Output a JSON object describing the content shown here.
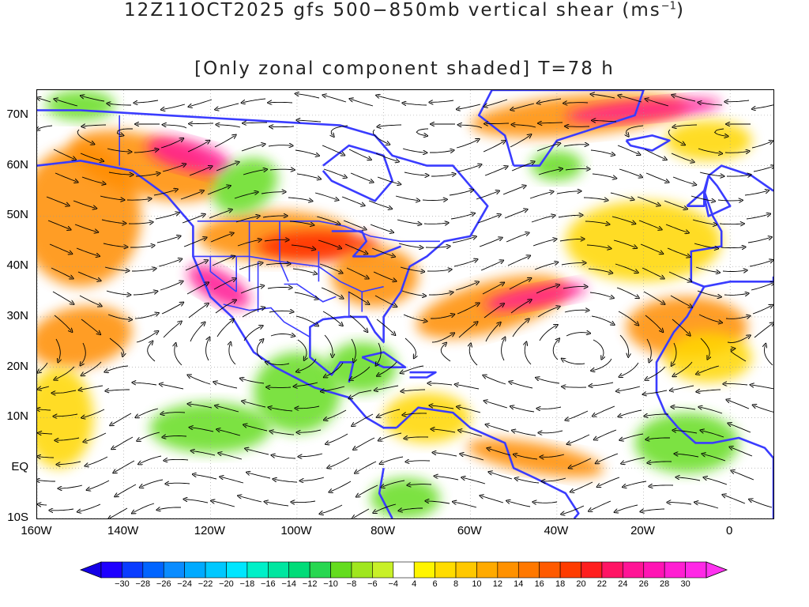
{
  "title": {
    "line1_prefix": "12Z11OCT2025 gfs 500−850mb vertical shear (ms",
    "line1_sup": "−1",
    "line1_suffix": ")",
    "line2": "[Only zonal component shaded] T=78 h"
  },
  "axes": {
    "lat_labels": [
      "70N",
      "60N",
      "50N",
      "40N",
      "30N",
      "20N",
      "10N",
      "EQ",
      "10S"
    ],
    "lat_values": [
      70,
      60,
      50,
      40,
      30,
      20,
      10,
      0,
      -10
    ],
    "lon_labels": [
      "160W",
      "140W",
      "120W",
      "100W",
      "80W",
      "60W",
      "40W",
      "20W",
      "0"
    ],
    "lon_values": [
      -160,
      -140,
      -120,
      -100,
      -80,
      -60,
      -40,
      -20,
      0
    ],
    "lon_range": [
      -160,
      10
    ],
    "lat_range": [
      -10,
      75
    ]
  },
  "colorbar": {
    "labels": [
      "−30",
      "−28",
      "−26",
      "−24",
      "−22",
      "−20",
      "−18",
      "−16",
      "−14",
      "−12",
      "−10",
      "−8",
      "−6",
      "−4",
      "4",
      "6",
      "8",
      "10",
      "12",
      "14",
      "16",
      "18",
      "20",
      "22",
      "24",
      "26",
      "28",
      "30"
    ],
    "colors": [
      "#1e00ff",
      "#0a3cff",
      "#0064ff",
      "#0a8cff",
      "#00aaff",
      "#00c8ff",
      "#00e6ff",
      "#00f0c8",
      "#00e6a0",
      "#00dc78",
      "#28d750",
      "#64dc1e",
      "#a0e61e",
      "#c8f028",
      "#ffffff",
      "#fff500",
      "#ffdc00",
      "#ffc800",
      "#ffaa00",
      "#ff9100",
      "#ff7800",
      "#ff5a00",
      "#ff3c00",
      "#ff1e1e",
      "#ff1464",
      "#ff1496",
      "#ff14b4",
      "#ff1ed2",
      "#ff28e6"
    ],
    "low_arrow_color": "#1400e6",
    "high_arrow_color": "#ff32f0"
  },
  "map_colors": {
    "orange": "#ff8c00",
    "yellow": "#ffd700",
    "red": "#ff2a00",
    "magenta": "#ff1493",
    "green": "#66dd22",
    "coast": "#3a3cff",
    "streamline": "#000000"
  }
}
